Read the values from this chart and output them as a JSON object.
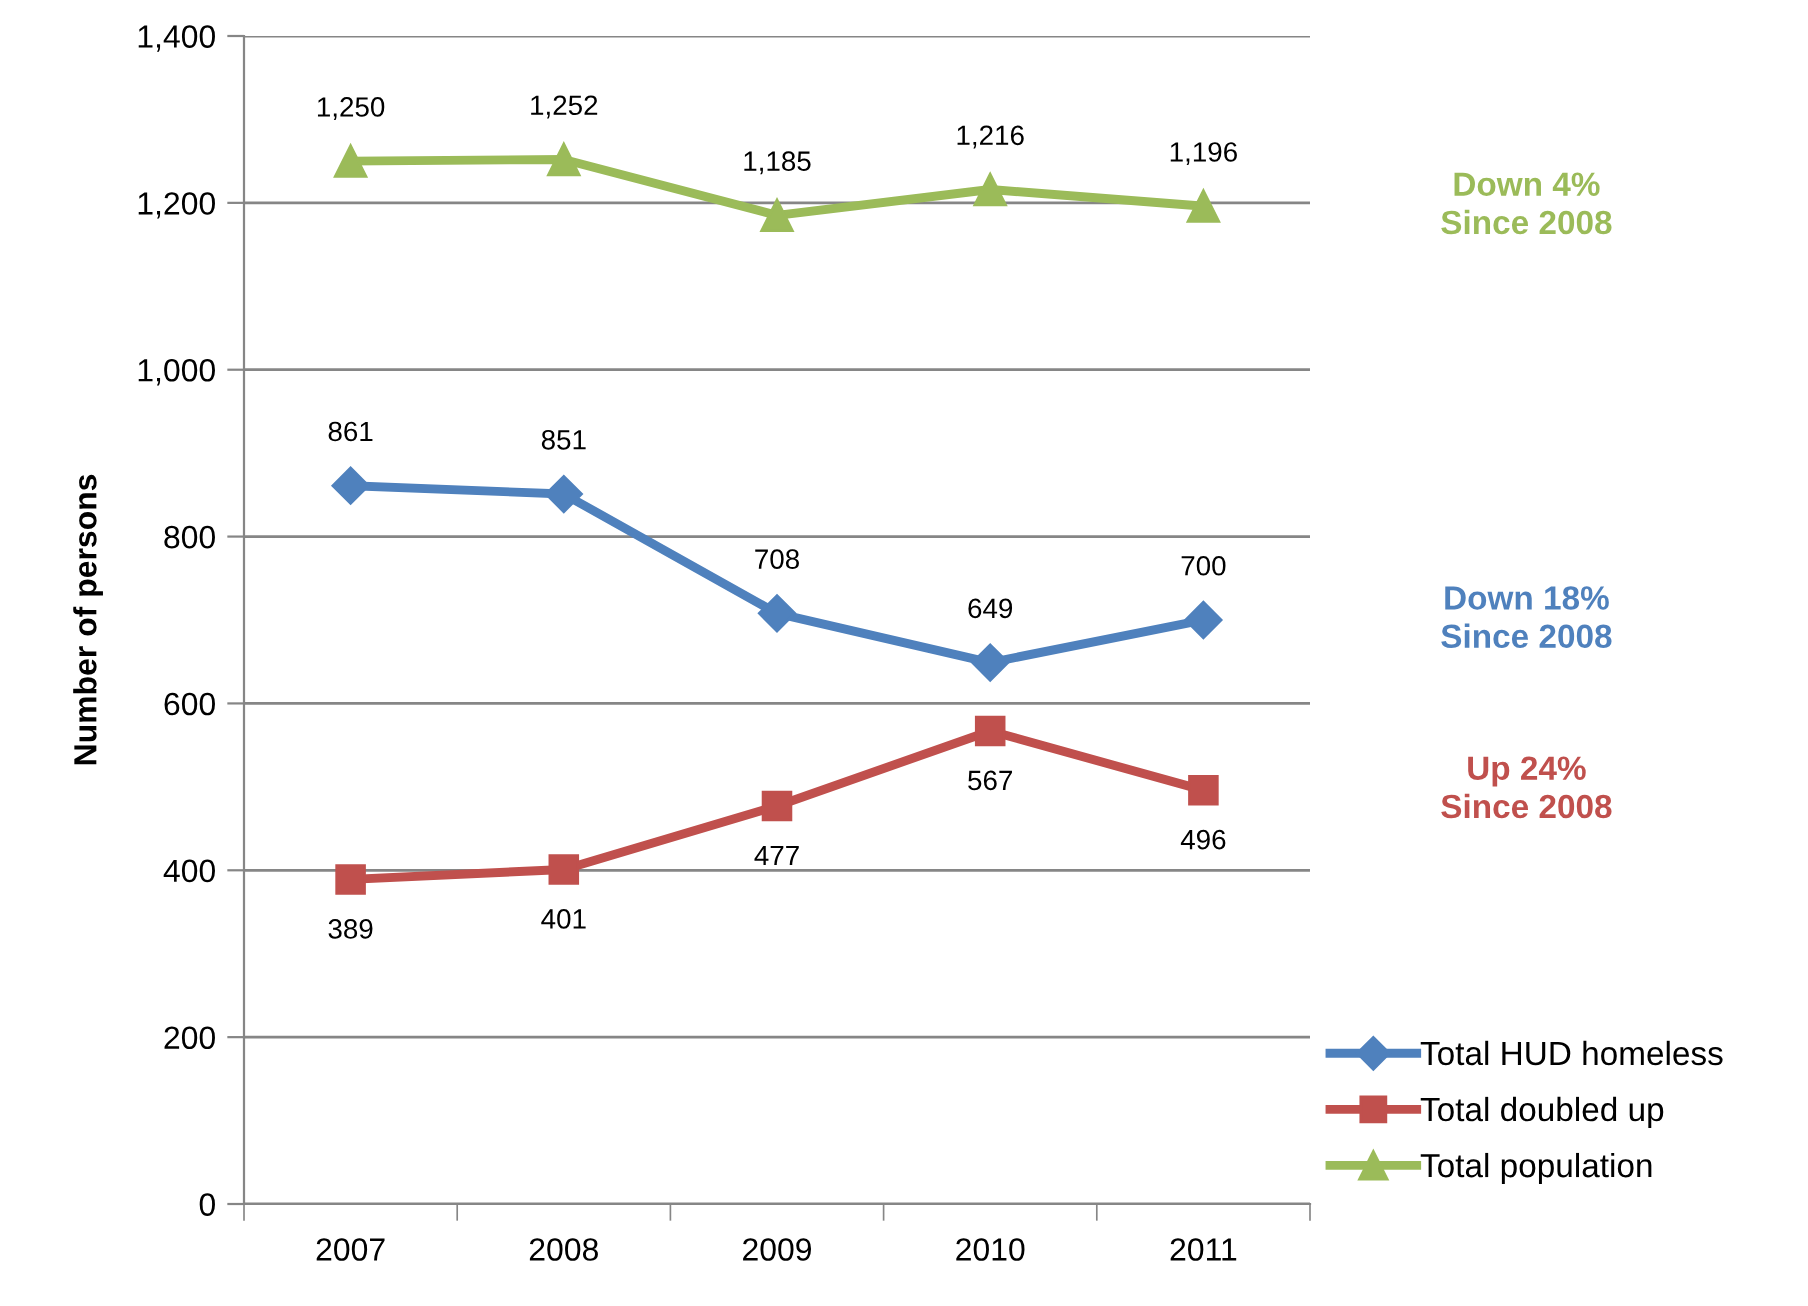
{
  "chart_data": {
    "type": "line",
    "ylabel": "Number of persons",
    "categories": [
      "2007",
      "2008",
      "2009",
      "2010",
      "2011"
    ],
    "series": [
      {
        "name": "Total HUD homeless",
        "color": "#4f81bd",
        "marker": "diamond",
        "values": [
          861,
          851,
          708,
          649,
          700
        ],
        "value_labels": [
          "861",
          "851",
          "708",
          "649",
          "700"
        ]
      },
      {
        "name": "Total doubled up",
        "color": "#c0504d",
        "marker": "square",
        "values": [
          389,
          401,
          477,
          567,
          496
        ],
        "value_labels": [
          "389",
          "401",
          "477",
          "567",
          "496"
        ]
      },
      {
        "name": "Total population",
        "color": "#9bbb59",
        "marker": "triangle",
        "values": [
          1250,
          1252,
          1185,
          1216,
          1196
        ],
        "value_labels": [
          "1,250",
          "1,252",
          "1,185",
          "1,216",
          "1,196"
        ]
      }
    ],
    "ylim": [
      0,
      1400
    ],
    "yticks": [
      0,
      200,
      400,
      600,
      800,
      {
        "value": 1000,
        "label": "1,000"
      },
      {
        "value": 1200,
        "label": "1,200"
      },
      {
        "value": 1400,
        "label": "1,400"
      }
    ],
    "grid": "y",
    "legend": "bottom right",
    "annotations": [
      "Down 18%\nSince 2008",
      "Up 24%\nSince 2008",
      "Down 4%\nSince 2008"
    ]
  }
}
